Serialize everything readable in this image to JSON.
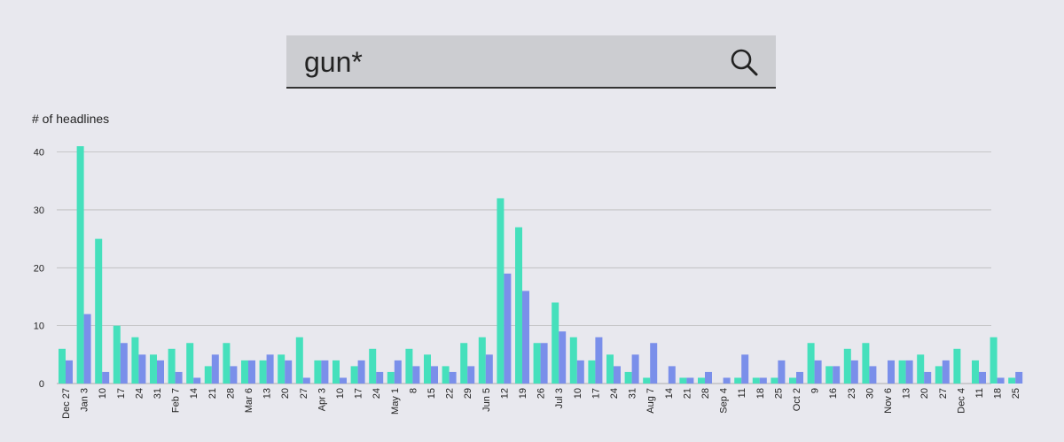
{
  "search": {
    "query": "gun*",
    "icon": "search-icon"
  },
  "colors": {
    "series_a": "#45e0bc",
    "series_b": "#7a8fea",
    "gridline": "#bbbbbb",
    "background": "#e8e8ee"
  },
  "chart_data": {
    "type": "bar",
    "title": "",
    "xlabel": "",
    "ylabel": "# of headlines",
    "ylim": [
      0,
      43
    ],
    "yticks": [
      0,
      10,
      20,
      30,
      40
    ],
    "grid": true,
    "categories": [
      "Dec 27",
      "Jan 3",
      "10",
      "17",
      "24",
      "31",
      "Feb 7",
      "14",
      "21",
      "28",
      "Mar 6",
      "13",
      "20",
      "27",
      "Apr 3",
      "10",
      "17",
      "24",
      "May 1",
      "8",
      "15",
      "22",
      "29",
      "Jun 5",
      "12",
      "19",
      "26",
      "Jul 3",
      "10",
      "17",
      "24",
      "31",
      "Aug 7",
      "14",
      "21",
      "28",
      "Sep 4",
      "11",
      "18",
      "25",
      "Oct 2",
      "9",
      "16",
      "23",
      "30",
      "Nov 6",
      "13",
      "20",
      "27",
      "Dec 4",
      "11",
      "18",
      "25"
    ],
    "series": [
      {
        "values": [
          6,
          41,
          25,
          10,
          8,
          5,
          6,
          7,
          3,
          7,
          4,
          4,
          5,
          8,
          4,
          4,
          3,
          6,
          2,
          6,
          5,
          3,
          7,
          8,
          32,
          27,
          7,
          14,
          8,
          4,
          5,
          2,
          1,
          0,
          1,
          1,
          0,
          1,
          1,
          1,
          1,
          7,
          3,
          6,
          7,
          0,
          4,
          5,
          3,
          6,
          4,
          8,
          1
        ]
      },
      {
        "values": [
          4,
          12,
          2,
          7,
          5,
          4,
          2,
          1,
          5,
          3,
          4,
          5,
          4,
          1,
          4,
          1,
          4,
          2,
          4,
          3,
          3,
          2,
          3,
          5,
          19,
          16,
          7,
          9,
          4,
          8,
          3,
          5,
          7,
          3,
          1,
          2,
          1,
          5,
          1,
          4,
          2,
          4,
          3,
          4,
          3,
          4,
          4,
          2,
          4,
          0,
          2,
          1,
          2
        ]
      }
    ]
  }
}
